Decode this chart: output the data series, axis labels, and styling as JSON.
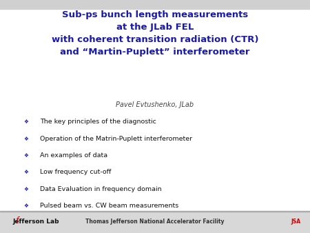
{
  "title_line1": "Sub-ps bunch length measurements",
  "title_line2": "at the JLab FEL",
  "title_line3": "with coherent transition radiation (CTR)",
  "title_line4": "and “Martin-Puplett” interferometer",
  "title_color": "#1a1aaa",
  "author": "Pavel Evtushenko, JLab",
  "author_color": "#444444",
  "bullet_color": "#1a1aaa",
  "bullet_symbol": "❖",
  "bullets": [
    "The key principles of the diagnostic",
    "Operation of the Matrin-Puplett interferometer",
    "An examples of data",
    "Low frequency cut-off",
    "Data Evaluation in frequency domain",
    "Pulsed beam vs. CW beam measurements"
  ],
  "bullet_text_color": "#111111",
  "bg_color": "#ffffff",
  "top_stripe_color": "#d0d0d0",
  "bottom_stripe_color": "#d8d8d8",
  "footer_text": "Thomas Jefferson National Accelerator Facility",
  "footer_left": "Jefferson Lab",
  "title_fontsize": 9.5,
  "author_fontsize": 7.0,
  "bullet_fontsize": 6.8,
  "footer_fontsize": 5.5
}
